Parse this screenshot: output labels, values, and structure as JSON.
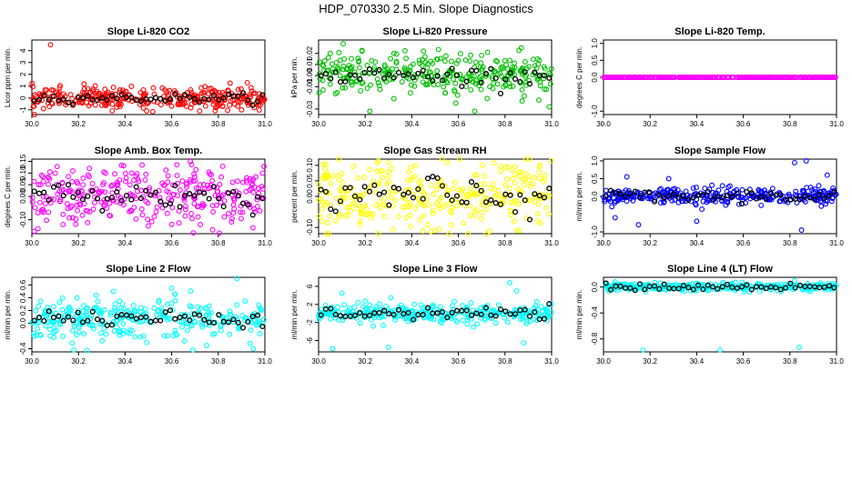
{
  "title": "HDP_070330  2.5 Min. Slope Diagnostics",
  "colors": {
    "black": "#000000"
  },
  "chart_data": [
    {
      "type": "scatter",
      "title": "Slope Li-820 CO2",
      "ylabel": "Licor ppm per min.",
      "xlim": [
        30.0,
        31.0
      ],
      "ylim": [
        -1.4,
        4.9
      ],
      "xticks": [
        "30.0",
        "30.2",
        "30.4",
        "30.6",
        "30.8",
        "31.0"
      ],
      "yticks": [
        "-1",
        "0",
        "1",
        "2",
        "3",
        "4"
      ],
      "ytick_values": [
        -1,
        0,
        1,
        2,
        3,
        4
      ],
      "color": "#ff0000",
      "series": [
        {
          "name": "slope",
          "center": 0.0,
          "spread": 0.45,
          "outliers": [
            [
              30.08,
              4.5
            ],
            [
              30.05,
              -0.9
            ],
            [
              30.98,
              -0.6
            ],
            [
              30.35,
              0.9
            ],
            [
              30.72,
              -1.1
            ],
            [
              30.24,
              0.8
            ]
          ]
        },
        {
          "name": "sample_mean",
          "center": 0.0,
          "spread": 0.18
        }
      ]
    },
    {
      "type": "scatter",
      "title": "Slope Li-820 Pressure",
      "ylabel": "kPa per min.",
      "xlim": [
        30.0,
        31.0
      ],
      "ylim": [
        -0.035,
        0.032
      ],
      "xticks": [
        "30.0",
        "30.2",
        "30.4",
        "30.6",
        "30.8",
        "31.0"
      ],
      "yticks": [
        "-0.03",
        "-0.01",
        "0.00",
        "0.01",
        "0.02"
      ],
      "ytick_values": [
        -0.03,
        -0.01,
        0.0,
        0.01,
        0.02
      ],
      "color": "#00c000",
      "series": [
        {
          "name": "slope",
          "center": 0.001,
          "spread": 0.009,
          "outliers": [
            [
              30.22,
              -0.032
            ],
            [
              30.67,
              -0.032
            ],
            [
              30.99,
              -0.028
            ],
            [
              30.87,
              0.025
            ],
            [
              30.05,
              0.02
            ],
            [
              30.45,
              0.022
            ]
          ]
        },
        {
          "name": "sample_mean",
          "center": 0.0,
          "spread": 0.004
        }
      ]
    },
    {
      "type": "scatter",
      "title": "Slope Li-820 Temp.",
      "ylabel": "degrees C per min.",
      "xlim": [
        30.0,
        31.0
      ],
      "ylim": [
        -1.1,
        1.1
      ],
      "xticks": [
        "30.0",
        "30.2",
        "30.4",
        "30.6",
        "30.8",
        "31.0"
      ],
      "yticks": [
        "-1.0",
        "0.0",
        "0.5",
        "1.0"
      ],
      "ytick_values": [
        -1.0,
        0.0,
        0.5,
        1.0
      ],
      "color": "#ff00ff",
      "series": [
        {
          "name": "slope",
          "center": 0.0,
          "spread": 0.0,
          "outliers": []
        },
        {
          "name": "sample_mean",
          "center": 0.0,
          "spread": 0.0
        }
      ]
    },
    {
      "type": "scatter",
      "title": "Slope Amb. Box Temp.",
      "ylabel": "degrees C per min.",
      "xlim": [
        30.0,
        31.0
      ],
      "ylim": [
        -0.16,
        0.16
      ],
      "xticks": [
        "30.0",
        "30.2",
        "30.4",
        "30.6",
        "30.8",
        "31.0"
      ],
      "yticks": [
        "-0.10",
        "0.00",
        "0.05",
        "0.10",
        "0.15"
      ],
      "ytick_values": [
        -0.1,
        0.0,
        0.05,
        0.1,
        0.15
      ],
      "color": "#ff00ff",
      "series": [
        {
          "name": "slope",
          "center": 0.0,
          "spread": 0.06,
          "outliers": [
            [
              30.68,
              0.15
            ],
            [
              30.01,
              -0.15
            ],
            [
              30.99,
              0.1
            ],
            [
              30.6,
              -0.12
            ],
            [
              30.1,
              0.1
            ]
          ]
        },
        {
          "name": "sample_mean",
          "center": 0.005,
          "spread": 0.03
        }
      ]
    },
    {
      "type": "scatter",
      "title": "Slope Gas Stream RH",
      "ylabel": "percent per min.",
      "xlim": [
        30.0,
        31.0
      ],
      "ylim": [
        -0.12,
        0.12
      ],
      "xticks": [
        "30.0",
        "30.2",
        "30.4",
        "30.6",
        "30.8",
        "31.0"
      ],
      "yticks": [
        "-0.10",
        "0.00",
        "0.05",
        "0.10"
      ],
      "ytick_values": [
        -0.1,
        0.0,
        0.05,
        0.1
      ],
      "color": "#ffff00",
      "series": [
        {
          "name": "slope",
          "center": 0.005,
          "spread": 0.055,
          "outliers": [
            [
              30.85,
              -0.11
            ],
            [
              30.3,
              0.11
            ],
            [
              30.5,
              -0.11
            ],
            [
              30.95,
              0.1
            ]
          ]
        },
        {
          "name": "sample_mean",
          "center": 0.0,
          "spread": 0.035
        }
      ]
    },
    {
      "type": "scatter",
      "title": "Slope Sample Flow",
      "ylabel": "ml/min per min.",
      "xlim": [
        30.0,
        31.0
      ],
      "ylim": [
        -1.05,
        1.05
      ],
      "xticks": [
        "30.0",
        "30.2",
        "30.4",
        "30.6",
        "30.8",
        "31.0"
      ],
      "yticks": [
        "-1.0",
        "0.0",
        "0.5",
        "1.0"
      ],
      "ytick_values": [
        -1.0,
        0.0,
        0.5,
        1.0
      ],
      "color": "#0000ff",
      "series": [
        {
          "name": "slope",
          "center": 0.0,
          "spread": 0.12,
          "outliers": [
            [
              30.82,
              0.95
            ],
            [
              30.87,
              1.0
            ],
            [
              30.1,
              0.55
            ],
            [
              30.85,
              -0.95
            ],
            [
              30.05,
              -0.6
            ],
            [
              30.15,
              -0.8
            ],
            [
              30.4,
              -0.7
            ],
            [
              30.96,
              0.6
            ],
            [
              30.28,
              0.5
            ]
          ]
        },
        {
          "name": "sample_mean",
          "center": 0.0,
          "spread": 0.08
        }
      ]
    },
    {
      "type": "scatter",
      "title": "Slope Line 2 Flow",
      "ylabel": "ml/min per min.",
      "xlim": [
        30.0,
        31.0
      ],
      "ylim": [
        -0.45,
        0.72
      ],
      "xticks": [
        "30.0",
        "30.2",
        "30.4",
        "30.6",
        "30.8",
        "31.0"
      ],
      "yticks": [
        "-0.4",
        "0.0",
        "0.2",
        "0.4",
        "0.6"
      ],
      "ytick_values": [
        -0.4,
        0.0,
        0.2,
        0.4,
        0.6
      ],
      "color": "#00ffff",
      "series": [
        {
          "name": "slope",
          "center": 0.08,
          "spread": 0.15,
          "outliers": [
            [
              30.88,
              0.7
            ],
            [
              30.6,
              0.55
            ],
            [
              30.18,
              -0.42
            ],
            [
              30.95,
              -0.4
            ],
            [
              30.35,
              0.5
            ],
            [
              30.75,
              -0.35
            ]
          ]
        },
        {
          "name": "sample_mean",
          "center": 0.08,
          "spread": 0.07
        }
      ]
    },
    {
      "type": "scatter",
      "title": "Slope Line 3 Flow",
      "ylabel": "ml/min per min.",
      "xlim": [
        30.0,
        31.0
      ],
      "ylim": [
        -8.5,
        8.0
      ],
      "xticks": [
        "30.0",
        "30.2",
        "30.4",
        "30.6",
        "30.8",
        "31.0"
      ],
      "yticks": [
        "-6",
        "-2",
        "2",
        "6"
      ],
      "ytick_values": [
        -6,
        -2,
        2,
        6
      ],
      "color": "#00ffff",
      "series": [
        {
          "name": "slope",
          "center": 0.0,
          "spread": 1.0,
          "outliers": [
            [
              30.06,
              -7.8
            ],
            [
              30.3,
              -7.5
            ],
            [
              30.82,
              6.8
            ],
            [
              30.88,
              -6.5
            ],
            [
              30.1,
              4.5
            ],
            [
              30.85,
              5.0
            ],
            [
              30.31,
              3.5
            ]
          ]
        },
        {
          "name": "sample_mean",
          "center": 0.0,
          "spread": 0.6
        }
      ]
    },
    {
      "type": "scatter",
      "title": "Slope Line 4 (LT) Flow",
      "ylabel": "ml/min per min.",
      "xlim": [
        30.0,
        31.0
      ],
      "ylim": [
        -1.0,
        0.15
      ],
      "xticks": [
        "30.0",
        "30.2",
        "30.4",
        "30.6",
        "30.8",
        "31.0"
      ],
      "yticks": [
        "-0.8",
        "-0.4",
        "0.0"
      ],
      "ytick_values": [
        -0.8,
        -0.4,
        0.0
      ],
      "color": "#00ffff",
      "series": [
        {
          "name": "slope",
          "center": 0.0,
          "spread": 0.03,
          "outliers": [
            [
              30.17,
              -0.97
            ],
            [
              30.5,
              -0.97
            ],
            [
              30.84,
              -0.93
            ],
            [
              30.82,
              0.1
            ],
            [
              30.05,
              0.08
            ]
          ]
        },
        {
          "name": "sample_mean",
          "center": 0.0,
          "spread": 0.025
        }
      ]
    }
  ]
}
